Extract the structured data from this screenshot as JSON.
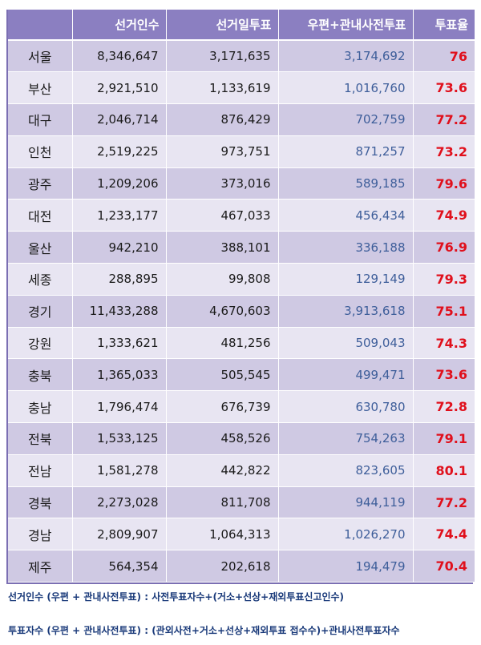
{
  "table": {
    "headers": [
      "",
      "선거인수",
      "선거일투표",
      "우편+관내사전투표",
      "투표율"
    ],
    "rows": [
      [
        "서울",
        "8,346,647",
        "3,171,635",
        "3,174,692",
        "76"
      ],
      [
        "부산",
        "2,921,510",
        "1,133,619",
        "1,016,760",
        "73.6"
      ],
      [
        "대구",
        "2,046,714",
        "876,429",
        "702,759",
        "77.2"
      ],
      [
        "인천",
        "2,519,225",
        "973,751",
        "871,257",
        "73.2"
      ],
      [
        "광주",
        "1,209,206",
        "373,016",
        "589,185",
        "79.6"
      ],
      [
        "대전",
        "1,233,177",
        "467,033",
        "456,434",
        "74.9"
      ],
      [
        "울산",
        "942,210",
        "388,101",
        "336,188",
        "76.9"
      ],
      [
        "세종",
        "288,895",
        "99,808",
        "129,149",
        "79.3"
      ],
      [
        "경기",
        "11,433,288",
        "4,670,603",
        "3,913,618",
        "75.1"
      ],
      [
        "강원",
        "1,333,621",
        "481,256",
        "509,043",
        "74.3"
      ],
      [
        "충북",
        "1,365,033",
        "505,545",
        "499,471",
        "73.6"
      ],
      [
        "충남",
        "1,796,474",
        "676,739",
        "630,780",
        "72.8"
      ],
      [
        "전북",
        "1,533,125",
        "458,526",
        "754,263",
        "79.1"
      ],
      [
        "전남",
        "1,581,278",
        "442,822",
        "823,605",
        "80.1"
      ],
      [
        "경북",
        "2,273,028",
        "811,708",
        "944,119",
        "77.2"
      ],
      [
        "경남",
        "2,809,907",
        "1,064,313",
        "1,026,270",
        "74.4"
      ],
      [
        "제주",
        "564,354",
        "202,618",
        "194,479",
        "70.4"
      ]
    ]
  },
  "notes": {
    "line1": "선거인수 (우편 + 관내사전투표) : 사전투표자수+(거소+선상+재외투표신고인수)",
    "line2": "투표자수 (우편 + 관내사전투표) : (관외사전+거소+선상+재외투표 접수수)+관내사전투표자수"
  },
  "colors": {
    "header_bg": "#8b7fc1",
    "row_odd": "#cfc9e3",
    "row_even": "#e8e5f2",
    "mail_text": "#3e5e9a",
    "rate_text": "#e0101c",
    "notes_text": "#1a3a7a"
  }
}
